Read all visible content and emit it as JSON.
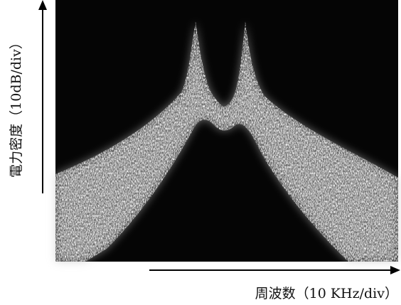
{
  "figure": {
    "y_axis_label": "電力密度（10dB/div）",
    "x_axis_label": "周波数（10 KHz/div）"
  }
}
